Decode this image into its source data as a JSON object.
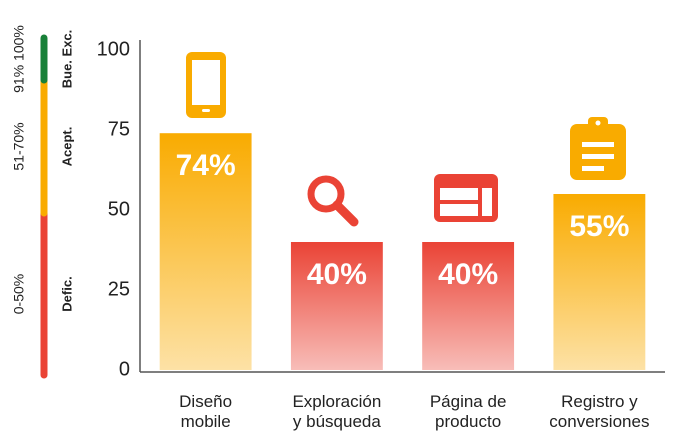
{
  "chart_data": {
    "type": "bar",
    "categories": [
      "Diseño\nmobile",
      "Exploración\ny búsqueda",
      "Página de\nproducto",
      "Registro y\nconversiones"
    ],
    "values": [
      74,
      40,
      40,
      55
    ],
    "value_labels": [
      "74%",
      "40%",
      "40%",
      "55%"
    ],
    "colors": [
      "#f9ab00",
      "#ea4335",
      "#ea4335",
      "#f9ab00"
    ],
    "ylim": [
      0,
      100
    ],
    "yticks": [
      0,
      25,
      50,
      75,
      100
    ],
    "grid": false,
    "scale": [
      {
        "range": "0-50%",
        "label": "Defic.",
        "color": "#ea4335"
      },
      {
        "range": "51-70%",
        "label": "Acept.",
        "color": "#f9ab00"
      },
      {
        "range": "91% 100%",
        "label": "Bue. Exc.",
        "color": "#188038"
      }
    ]
  }
}
